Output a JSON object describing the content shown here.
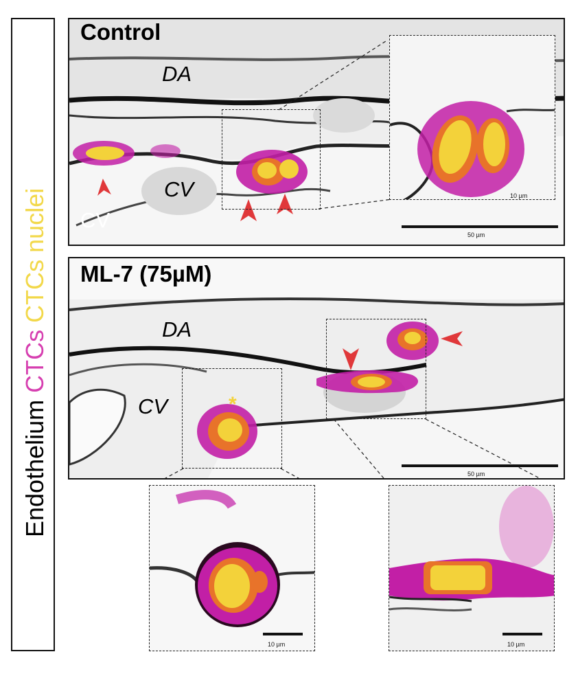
{
  "legend": {
    "endothelium": "Endothelium",
    "ctcs": "CTCs",
    "nuclei": "CTCs nuclei",
    "colors": {
      "endothelium": "#000000",
      "ctcs": "#d63fb0",
      "nuclei": "#f2d84a"
    }
  },
  "control": {
    "title": "Control",
    "label_da": "DA",
    "label_cv": "CV",
    "label_cv_corner": "CV",
    "scale_main": "50 µm",
    "scale_inset": "10 µm"
  },
  "ml7": {
    "title": "ML-7 (75µM)",
    "label_da": "DA",
    "label_cv": "CV",
    "scale_main": "50 µm",
    "asterisk": "*"
  },
  "insets_bottom": {
    "left_scale": "10 µm",
    "right_scale": "10 µm"
  },
  "colors": {
    "arrow": "#e0383a",
    "magenta": "#c21fa6",
    "yellow": "#f3d23a",
    "orange": "#e8732a"
  }
}
